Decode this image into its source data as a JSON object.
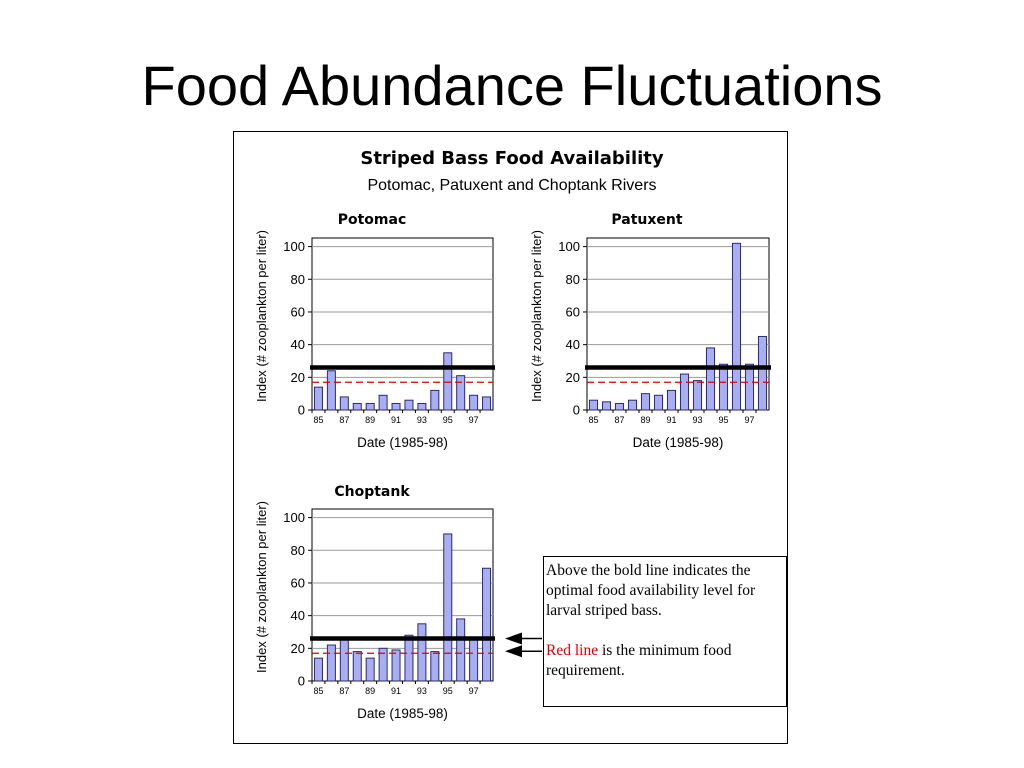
{
  "slide": {
    "title": "Food Abundance Fluctuations"
  },
  "figure": {
    "title": "Striped Bass Food Availability",
    "subtitle": "Potomac, Patuxent and Choptank Rivers"
  },
  "note": {
    "text1": "Above the bold line indicates the optimal food availability level for larval striped bass.",
    "red_text": "Red line",
    "text2": " is the minimum food requirement."
  },
  "colors": {
    "bar_fill": "#a8aef0",
    "bar_stroke": "#2a2a7a",
    "optimal_line": "#000000",
    "minimum_line": "#e00000",
    "grid": "#999999"
  },
  "chart_data": [
    {
      "type": "bar",
      "title": "Potomac",
      "xlabel": "Date (1985-98)",
      "ylabel": "Index (# zooplankton per liter)",
      "ylim": [
        0,
        100
      ],
      "yticks": [
        0,
        20,
        40,
        60,
        80,
        100
      ],
      "xtick_labels": [
        "85",
        "87",
        "89",
        "91",
        "93",
        "95",
        "97"
      ],
      "values": [
        14,
        24,
        8,
        4,
        4,
        9,
        4,
        6,
        4,
        12,
        35,
        21,
        9,
        8
      ],
      "optimal_level": 26,
      "minimum_level": 17,
      "grid": true
    },
    {
      "type": "bar",
      "title": "Patuxent",
      "xlabel": "Date (1985-98)",
      "ylabel": "Index (# zooplankton per liter)",
      "ylim": [
        0,
        100
      ],
      "yticks": [
        0,
        20,
        40,
        60,
        80,
        100
      ],
      "xtick_labels": [
        "85",
        "87",
        "89",
        "91",
        "93",
        "95",
        "97"
      ],
      "values": [
        6,
        5,
        4,
        6,
        10,
        9,
        12,
        22,
        18,
        38,
        28,
        102,
        28,
        45
      ],
      "optimal_level": 26,
      "minimum_level": 17,
      "grid": true
    },
    {
      "type": "bar",
      "title": "Choptank",
      "xlabel": "Date (1985-98)",
      "ylabel": "Index (# zooplankton per liter)",
      "ylim": [
        0,
        100
      ],
      "yticks": [
        0,
        20,
        40,
        60,
        80,
        100
      ],
      "xtick_labels": [
        "85",
        "87",
        "89",
        "91",
        "93",
        "95",
        "97"
      ],
      "values": [
        14,
        22,
        26,
        18,
        14,
        20,
        19,
        28,
        35,
        18,
        90,
        38,
        26,
        69
      ],
      "optimal_level": 26,
      "minimum_level": 17,
      "grid": true
    }
  ]
}
